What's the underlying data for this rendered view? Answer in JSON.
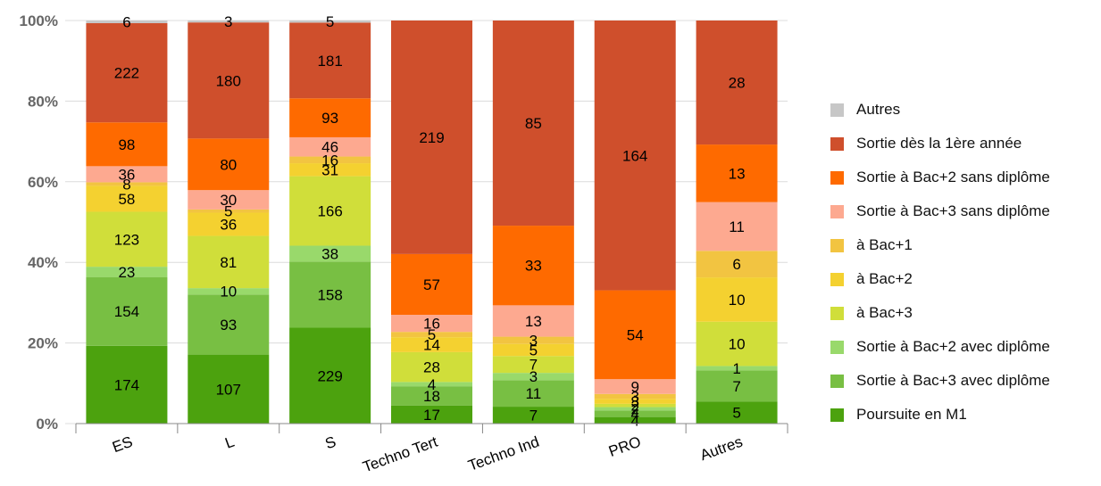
{
  "chart_data": {
    "type": "bar",
    "stacked": true,
    "normalized": true,
    "categories": [
      "ES",
      "L",
      "S",
      "Techno Tert",
      "Techno Ind",
      "PRO",
      "Autres"
    ],
    "y_ticks": [
      "0%",
      "20%",
      "40%",
      "60%",
      "80%",
      "100%"
    ],
    "ylim": [
      0,
      100
    ],
    "grid": true,
    "legend_position": "right",
    "series": [
      {
        "name": "Poursuite en M1",
        "color": "#4ca20e",
        "values": [
          174,
          107,
          229,
          17,
          7,
          4,
          5
        ]
      },
      {
        "name": "Sortie à Bac+3 avec diplôme",
        "color": "#78bf43",
        "values": [
          154,
          93,
          158,
          18,
          11,
          4,
          7
        ]
      },
      {
        "name": "Sortie à Bac+2 avec diplôme",
        "color": "#99d96b",
        "values": [
          23,
          10,
          38,
          4,
          3,
          2,
          1
        ]
      },
      {
        "name": "à Bac+3",
        "color": "#d0de3a",
        "values": [
          123,
          81,
          166,
          28,
          7,
          2,
          10
        ]
      },
      {
        "name": "à Bac+2",
        "color": "#f4d130",
        "values": [
          58,
          36,
          31,
          14,
          5,
          3,
          10
        ]
      },
      {
        "name": "à Bac+1",
        "color": "#f2c441",
        "values": [
          8,
          5,
          16,
          5,
          3,
          3,
          6
        ]
      },
      {
        "name": "Sortie à Bac+3 sans diplôme",
        "color": "#fda990",
        "values": [
          36,
          30,
          46,
          16,
          13,
          9,
          11
        ]
      },
      {
        "name": "Sortie à Bac+2 sans diplôme",
        "color": "#fe6a00",
        "values": [
          98,
          80,
          93,
          57,
          33,
          54,
          13
        ]
      },
      {
        "name": "Sortie dès la 1ère année",
        "color": "#cf4f2c",
        "values": [
          222,
          180,
          181,
          219,
          85,
          164,
          28
        ]
      },
      {
        "name": "Autres",
        "color": "#c7c7c7",
        "values": [
          6,
          3,
          5,
          0,
          0,
          0,
          0
        ]
      }
    ],
    "legend_order": [
      "Autres",
      "Sortie dès la 1ère année",
      "Sortie à Bac+2 sans diplôme",
      "Sortie à Bac+3 sans diplôme",
      "à Bac+1",
      "à Bac+2",
      "à Bac+3",
      "Sortie à Bac+2 avec diplôme",
      "Sortie à Bac+3 avec diplôme",
      "Poursuite en M1"
    ]
  }
}
